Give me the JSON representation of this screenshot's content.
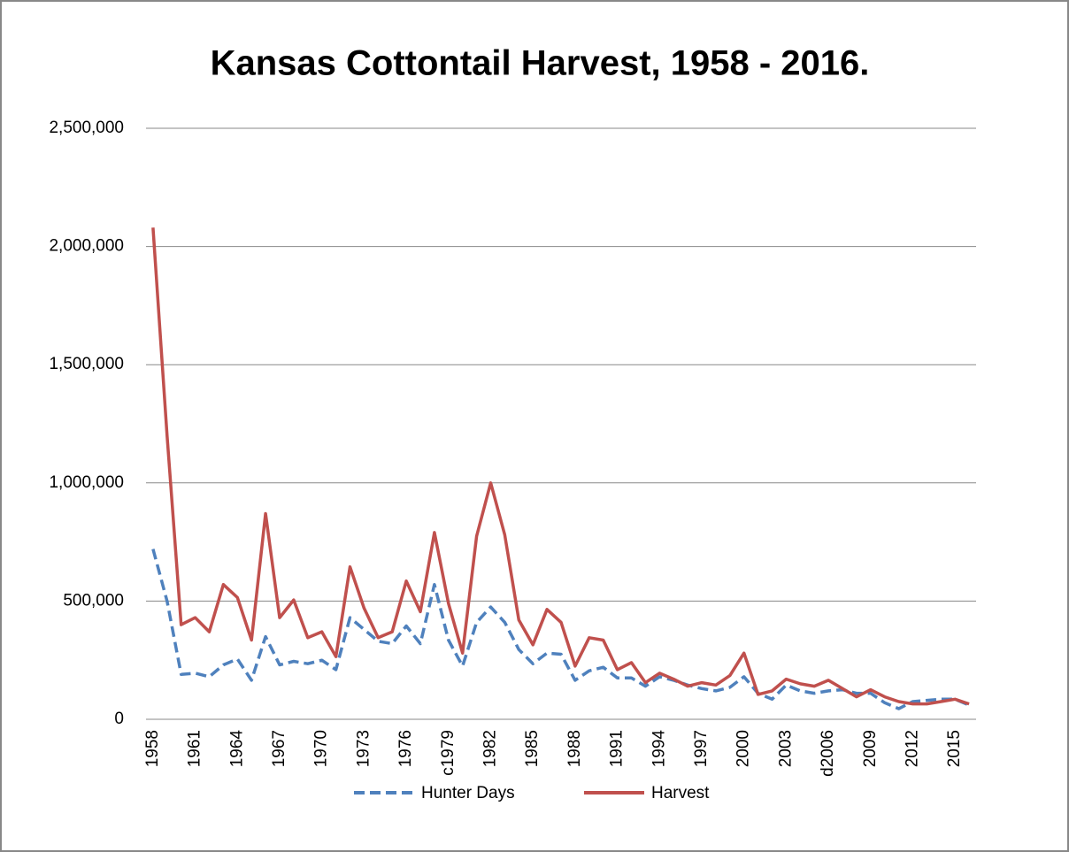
{
  "chart_data": {
    "type": "line",
    "title": "Kansas Cottontail Harvest, 1958 - 2016.",
    "categories": [
      "1958",
      null,
      null,
      "1961",
      null,
      null,
      "1964",
      null,
      null,
      "1967",
      null,
      null,
      "1970",
      null,
      null,
      "1973",
      null,
      null,
      "1976",
      null,
      null,
      "c1979",
      null,
      null,
      "1982",
      null,
      null,
      "1985",
      null,
      null,
      "1988",
      null,
      null,
      "1991",
      null,
      null,
      "1994",
      null,
      null,
      "1997",
      null,
      null,
      "2000",
      null,
      null,
      "2003",
      null,
      null,
      "d2006",
      null,
      null,
      "2009",
      null,
      null,
      "2012",
      null,
      null,
      "2015",
      null
    ],
    "series": [
      {
        "name": "Hunter Days",
        "color": "#4f81bd",
        "dash": true,
        "values": [
          720000,
          500000,
          190000,
          195000,
          180000,
          230000,
          255000,
          165000,
          350000,
          230000,
          245000,
          235000,
          250000,
          210000,
          430000,
          380000,
          330000,
          320000,
          395000,
          320000,
          570000,
          335000,
          225000,
          410000,
          475000,
          410000,
          295000,
          235000,
          280000,
          275000,
          165000,
          205000,
          220000,
          175000,
          175000,
          140000,
          180000,
          165000,
          145000,
          130000,
          120000,
          135000,
          180000,
          110000,
          85000,
          145000,
          120000,
          110000,
          120000,
          125000,
          110000,
          110000,
          70000,
          45000,
          75000,
          80000,
          85000,
          85000,
          60000
        ]
      },
      {
        "name": "Harvest",
        "color": "#c0504d",
        "dash": false,
        "values": [
          2080000,
          1200000,
          400000,
          430000,
          370000,
          570000,
          515000,
          335000,
          870000,
          430000,
          505000,
          345000,
          370000,
          265000,
          645000,
          470000,
          345000,
          370000,
          585000,
          455000,
          790000,
          490000,
          280000,
          775000,
          1000000,
          780000,
          420000,
          315000,
          465000,
          410000,
          225000,
          345000,
          335000,
          210000,
          240000,
          155000,
          195000,
          170000,
          140000,
          155000,
          145000,
          185000,
          280000,
          105000,
          120000,
          170000,
          150000,
          140000,
          165000,
          130000,
          95000,
          125000,
          95000,
          75000,
          65000,
          65000,
          75000,
          85000,
          65000
        ]
      }
    ],
    "ylim": [
      0,
      2500000
    ],
    "yticks": [
      0,
      {
        "value": 500000,
        "label": "500,000"
      },
      {
        "value": 1000000,
        "label": "1,000,000"
      },
      {
        "value": 1500000,
        "label": "1,500,000"
      },
      {
        "value": 2000000,
        "label": "2,000,000"
      },
      {
        "value": 2500000,
        "label": "2,500,000"
      }
    ],
    "grid": true,
    "legend": "bottom"
  }
}
